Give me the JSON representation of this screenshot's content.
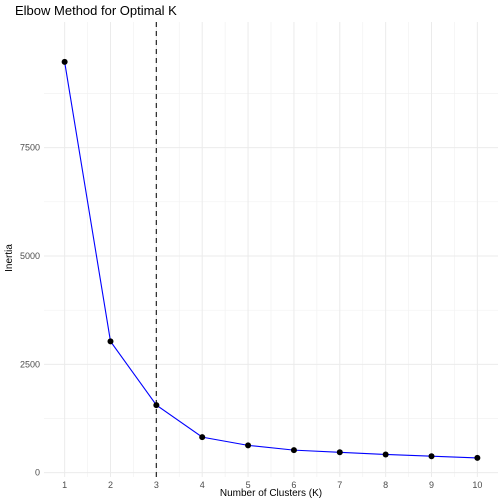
{
  "chart_data": {
    "type": "line",
    "title": "Elbow Method for Optimal K",
    "xlabel": "Number of Clusters (K)",
    "ylabel": "Inertia",
    "x": [
      1,
      2,
      3,
      4,
      5,
      6,
      7,
      8,
      9,
      10
    ],
    "series": [
      {
        "values": [
          9480,
          3030,
          1560,
          820,
          630,
          520,
          470,
          420,
          380,
          340
        ]
      }
    ],
    "xticks": [
      1,
      2,
      3,
      4,
      5,
      6,
      7,
      8,
      9,
      10
    ],
    "yticks": [
      0,
      2500,
      5000,
      7500
    ],
    "xlim": [
      0.55,
      10.45
    ],
    "ylim": [
      -100,
      10400
    ],
    "grid": true,
    "reference_line": {
      "orientation": "vertical",
      "x": 3,
      "style": "dashed"
    },
    "colors": {
      "line": "#0000ff",
      "point": "#000000",
      "reference": "#333333"
    }
  }
}
